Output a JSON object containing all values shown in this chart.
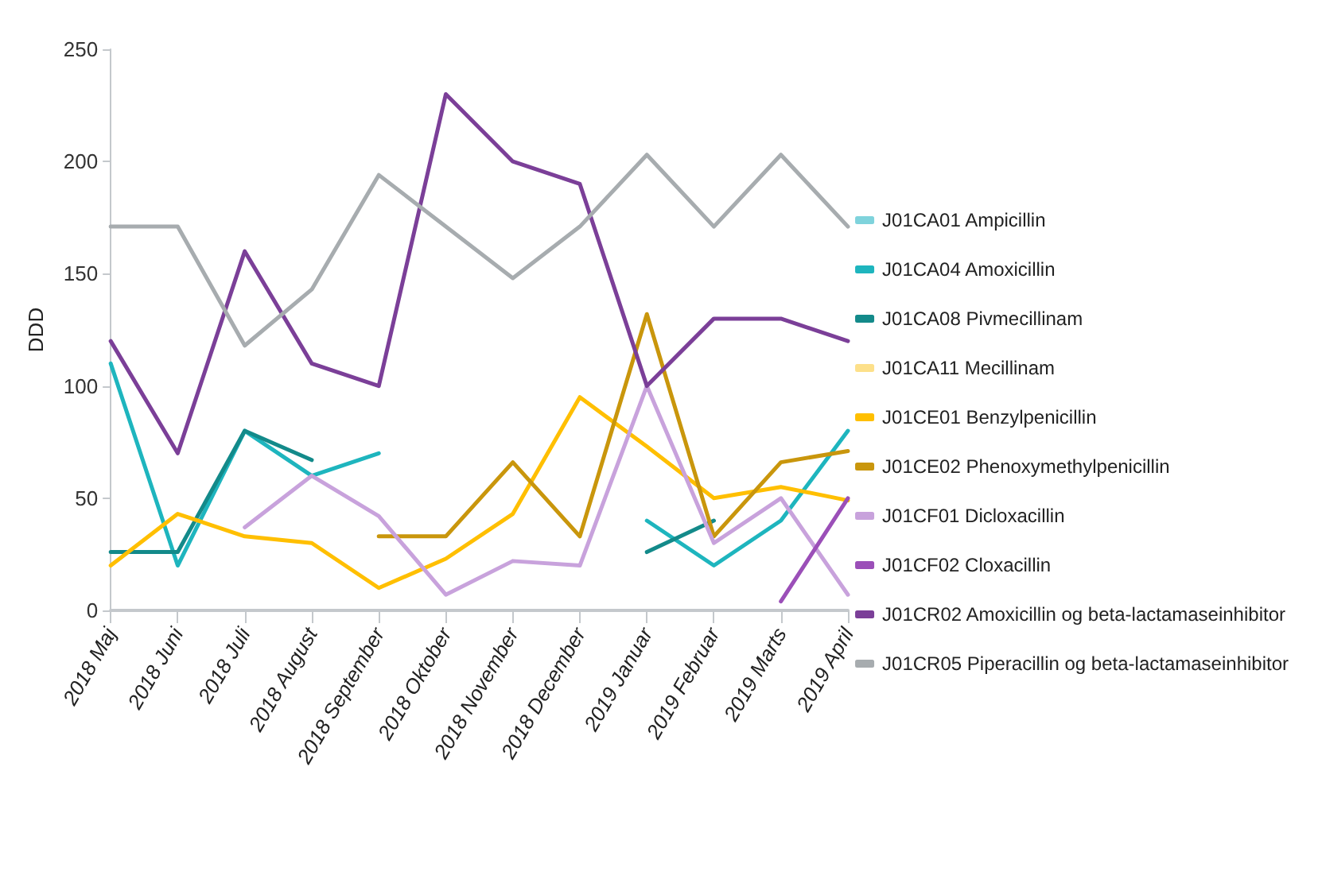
{
  "chart_data": {
    "type": "line",
    "ylabel": "DDD",
    "categories": [
      "2018 Maj",
      "2018 Juni",
      "2018 Juli",
      "2018 August",
      "2018 September",
      "2018 Oktober",
      "2018 November",
      "2018 December",
      "2019 Januar",
      "2019 Februar",
      "2019 Marts",
      "2019 April"
    ],
    "ylim": [
      0,
      250
    ],
    "yticks": [
      0,
      50,
      100,
      150,
      200,
      250
    ],
    "grid": false,
    "legend": "right",
    "marker": "none",
    "line_style": "solid",
    "series": [
      {
        "name": "J01CA01 Ampicillin",
        "color": "#7fd3dc",
        "values": [
          null,
          null,
          null,
          null,
          null,
          null,
          null,
          null,
          null,
          null,
          null,
          null
        ]
      },
      {
        "name": "J01CA04 Amoxicillin",
        "color": "#1eb5be",
        "values": [
          110,
          20,
          80,
          60,
          70,
          null,
          null,
          null,
          40,
          20,
          40,
          80
        ]
      },
      {
        "name": "J01CA08 Pivmecillinam",
        "color": "#138a8a",
        "values": [
          26,
          26,
          80,
          67,
          null,
          null,
          null,
          null,
          26,
          40,
          null,
          null
        ]
      },
      {
        "name": "J01CA11 Mecillinam",
        "color": "#fde08a",
        "values": [
          null,
          null,
          null,
          null,
          null,
          null,
          null,
          null,
          null,
          null,
          null,
          null
        ]
      },
      {
        "name": "J01CE01 Benzylpenicillin",
        "color": "#ffbf00",
        "values": [
          20,
          43,
          33,
          30,
          10,
          23,
          43,
          95,
          73,
          50,
          55,
          49
        ]
      },
      {
        "name": "J01CE02 Phenoxymethylpenicillin",
        "color": "#c9960c",
        "values": [
          null,
          null,
          null,
          null,
          33,
          33,
          66,
          33,
          132,
          33,
          66,
          71
        ]
      },
      {
        "name": "J01CF01 Dicloxacillin",
        "color": "#c8a2dc",
        "values": [
          null,
          null,
          37,
          60,
          42,
          7,
          22,
          20,
          100,
          30,
          50,
          7
        ]
      },
      {
        "name": "J01CF02 Cloxacillin",
        "color": "#9b4fb8",
        "values": [
          null,
          null,
          null,
          null,
          null,
          null,
          null,
          null,
          null,
          null,
          4,
          50
        ]
      },
      {
        "name": "J01CR02 Amoxicillin og beta-lactamaseinhibitor",
        "color": "#7b3f98",
        "values": [
          120,
          70,
          160,
          110,
          100,
          230,
          200,
          190,
          100,
          130,
          130,
          120
        ]
      },
      {
        "name": "J01CR05 Piperacillin og beta-lactamaseinhibitor",
        "color": "#a7acaf",
        "values": [
          171,
          171,
          118,
          143,
          194,
          171,
          148,
          171,
          203,
          171,
          203,
          171
        ]
      }
    ]
  }
}
